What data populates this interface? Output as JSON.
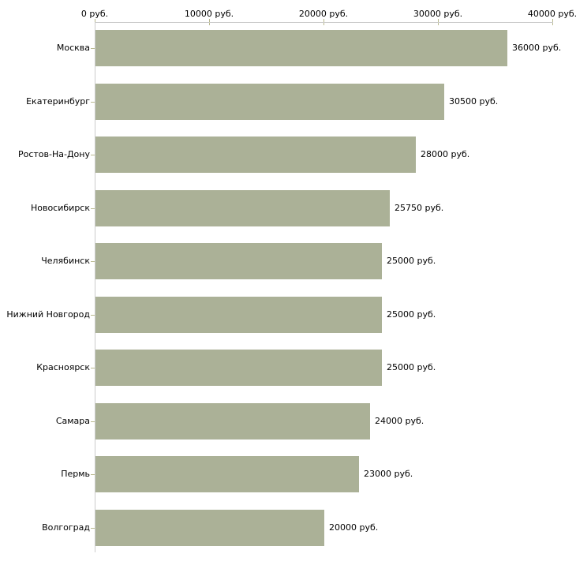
{
  "chart_data": {
    "type": "bar",
    "orientation": "horizontal",
    "title": "",
    "categories": [
      "Москва",
      "Екатеринбург",
      "Ростов-На-Дону",
      "Новосибирск",
      "Челябинск",
      "Нижний Новгород",
      "Красноярск",
      "Самара",
      "Пермь",
      "Волгоград"
    ],
    "values": [
      36000,
      30500,
      28000,
      25750,
      25000,
      25000,
      25000,
      24000,
      23000,
      20000
    ],
    "value_labels": [
      "36000 руб.",
      "30500 руб.",
      "28000 руб.",
      "25750 руб.",
      "25000 руб.",
      "25000 руб.",
      "25000 руб.",
      "24000 руб.",
      "23000 руб.",
      "20000 руб."
    ],
    "x_axis": {
      "position": "top",
      "range": [
        0,
        40000
      ],
      "ticks": [
        0,
        10000,
        20000,
        30000,
        40000
      ],
      "tick_labels": [
        "0 руб.",
        "10000 руб.",
        "20000 руб.",
        "30000 руб.",
        "40000 руб."
      ]
    },
    "grid": "off",
    "legend": null,
    "colors": {
      "bar": "#abb197",
      "axis_line": "#cccccc",
      "tick": "#b9b98e",
      "text": "#000000",
      "background": "#ffffff"
    }
  }
}
